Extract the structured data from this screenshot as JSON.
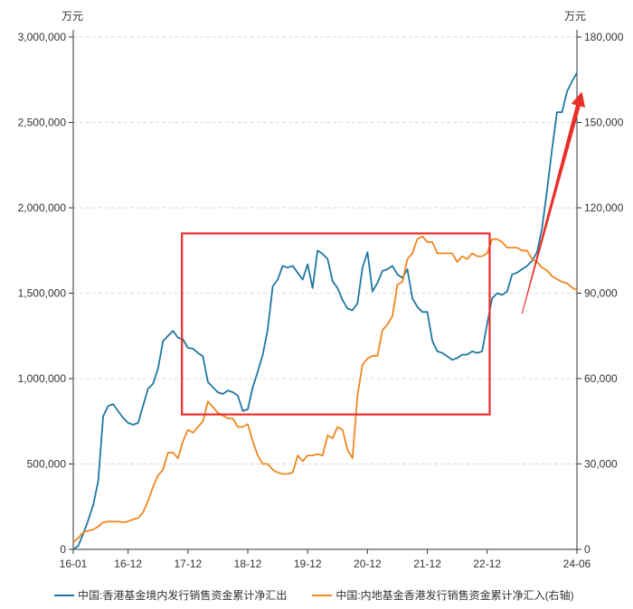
{
  "chart_data": {
    "type": "line",
    "left_unit": "万元",
    "right_unit": "万元",
    "y_left": {
      "min": 0,
      "max": 3000000,
      "ticks": [
        0,
        500000,
        1000000,
        1500000,
        2000000,
        2500000,
        3000000
      ],
      "tick_labels": [
        "0",
        "500,000",
        "1,000,000",
        "1,500,000",
        "2,000,000",
        "2,500,000",
        "3,000,000"
      ]
    },
    "y_right": {
      "min": 0,
      "max": 180000,
      "ticks": [
        0,
        30000,
        60000,
        90000,
        120000,
        150000,
        180000
      ],
      "tick_labels": [
        "0",
        "30,000",
        "60,000",
        "90,000",
        "120,000",
        "150,000",
        "180,000"
      ]
    },
    "x_ticks": [
      {
        "label": "16-01",
        "t": 0
      },
      {
        "label": "16-12",
        "t": 11
      },
      {
        "label": "17-12",
        "t": 23
      },
      {
        "label": "18-12",
        "t": 35
      },
      {
        "label": "19-12",
        "t": 47
      },
      {
        "label": "20-12",
        "t": 59
      },
      {
        "label": "21-12",
        "t": 71
      },
      {
        "label": "22-12",
        "t": 83
      },
      {
        "label": "24-06",
        "t": 101
      }
    ],
    "x_range": [
      0,
      101
    ],
    "grid": "horizontal dashed",
    "legend_position": "bottom",
    "series": [
      {
        "name": "中国:香港基金境内发行销售资金累计净汇出",
        "axis": "left",
        "color": "#1f77a3",
        "values": [
          0,
          20000,
          90000,
          170000,
          260000,
          400000,
          780000,
          840000,
          850000,
          810000,
          770000,
          740000,
          730000,
          740000,
          840000,
          940000,
          970000,
          1060000,
          1220000,
          1250000,
          1280000,
          1240000,
          1230000,
          1180000,
          1175000,
          1150000,
          1130000,
          980000,
          950000,
          920000,
          910000,
          930000,
          920000,
          900000,
          810000,
          820000,
          950000,
          1040000,
          1140000,
          1290000,
          1540000,
          1580000,
          1660000,
          1650000,
          1660000,
          1620000,
          1580000,
          1670000,
          1530000,
          1750000,
          1730000,
          1700000,
          1570000,
          1530000,
          1460000,
          1410000,
          1400000,
          1440000,
          1650000,
          1740000,
          1510000,
          1560000,
          1630000,
          1640000,
          1660000,
          1610000,
          1590000,
          1640000,
          1470000,
          1420000,
          1390000,
          1390000,
          1220000,
          1160000,
          1150000,
          1130000,
          1110000,
          1120000,
          1140000,
          1140000,
          1160000,
          1150000,
          1160000,
          1320000,
          1470000,
          1500000,
          1490000,
          1510000,
          1610000,
          1620000,
          1640000,
          1660000,
          1690000,
          1740000,
          1880000,
          2100000,
          2340000,
          2560000,
          2560000,
          2680000,
          2740000,
          2790000
        ]
      },
      {
        "name": "中国:内地基金香港发行销售资金累计净汇入(右轴)",
        "axis": "right",
        "color": "#f0861e",
        "values": [
          2500,
          4000,
          6000,
          6500,
          7000,
          8000,
          9500,
          9800,
          9700,
          9800,
          9500,
          9800,
          10500,
          11000,
          13000,
          17000,
          22000,
          26000,
          28000,
          34000,
          34000,
          32000,
          38000,
          42000,
          41000,
          43000,
          45000,
          52000,
          50000,
          48000,
          47000,
          46000,
          46000,
          43000,
          43000,
          44000,
          38000,
          33000,
          30000,
          30000,
          28000,
          27000,
          26500,
          26500,
          27000,
          33000,
          31000,
          33000,
          33000,
          33500,
          33000,
          40000,
          39000,
          43000,
          42000,
          35000,
          32000,
          54000,
          65000,
          67000,
          68000,
          68000,
          77000,
          79000,
          82000,
          93000,
          94000,
          102000,
          104000,
          109000,
          110000,
          108000,
          108000,
          104000,
          104000,
          104000,
          104000,
          101000,
          103000,
          102000,
          104000,
          103000,
          103000,
          104000,
          109000,
          109000,
          108000,
          106000,
          106000,
          106000,
          105000,
          105000,
          102000,
          101000,
          99000,
          98000,
          96000,
          95000,
          94000,
          93500,
          92000,
          91000
        ]
      }
    ],
    "annotations": [
      {
        "type": "rectangle",
        "color": "#e8302a",
        "x_from": 21.8,
        "x_to": 83.5,
        "y_from": 790000,
        "y_to": 1850000
      },
      {
        "type": "arrow",
        "color": "#e8302a",
        "x_from": 90,
        "y_from": 1380000,
        "x_to": 102,
        "y_to": 2680000
      }
    ]
  }
}
